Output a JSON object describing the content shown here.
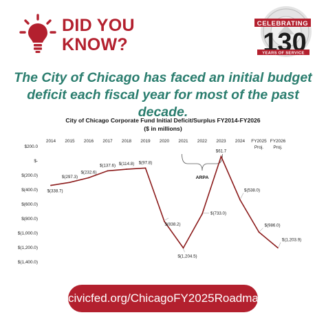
{
  "header": {
    "did_you": "DID YOU",
    "know": "KNOW?",
    "seal": {
      "celebrating": "CELEBRATING",
      "number": "130",
      "tagline": "YEARS OF SERVICE"
    }
  },
  "headline": "The City of Chicago has faced an initial budget deficit each fiscal year for most of the past decade.",
  "chart_data": {
    "type": "line",
    "title": "City of Chicago Corporate Fund Initial Deficit/Surplus FY2014-FY2026",
    "subtitle": "($ in millions)",
    "categories": [
      "2014",
      "2015",
      "2016",
      "2017",
      "2018",
      "2019",
      "2020",
      "2021",
      "2022",
      "2023",
      "2024",
      "FY2025 Proj.",
      "FY2026 Proj."
    ],
    "category_lines": [
      [
        "2014"
      ],
      [
        "2015"
      ],
      [
        "2016"
      ],
      [
        "2017"
      ],
      [
        "2018"
      ],
      [
        "2019"
      ],
      [
        "2020"
      ],
      [
        "2021"
      ],
      [
        "2022"
      ],
      [
        "2023"
      ],
      [
        "2024"
      ],
      [
        "FY2025",
        "Proj."
      ],
      [
        "FY2026",
        "Proj."
      ]
    ],
    "values": [
      -338.7,
      -297.3,
      -232.6,
      -137.6,
      -114.8,
      -97.8,
      -838.2,
      -1204.5,
      -733.0,
      61.7,
      -538.0,
      -986.0,
      -1203.9
    ],
    "data_labels": [
      "$(338.7)",
      "$(297.3)",
      "$(232.6)",
      "$(137.6)",
      "$(114.8)",
      "$(97.8)",
      "$(838.2)",
      "$(1,204.5)",
      "$(733.0)",
      "$61.7",
      "$(538.0)",
      "$(986.0)",
      "$(1,203.9)"
    ],
    "y_ticks": [
      200,
      0,
      -200,
      -400,
      -600,
      -800,
      -1000,
      -1200,
      -1400
    ],
    "y_tick_labels": [
      "$200.0",
      "$-",
      "$(200.0)",
      "$(400.0)",
      "$(600.0)",
      "$(800.0)",
      "$(1,000.0)",
      "$(1,200.0)",
      "$(1,400.0)"
    ],
    "ylim": [
      -1400,
      200
    ],
    "grid": false,
    "legend": "none",
    "line_color": "#8b1a1a",
    "annotation": {
      "text": "ARPA",
      "categories": [
        "2021",
        "2022",
        "2023"
      ]
    }
  },
  "footer": {
    "url": "civicfed.org/ChicagoFY2025Roadmap"
  },
  "colors": {
    "brand_red": "#b3202e",
    "headline_teal": "#2a7d6e",
    "line": "#8b1a1a"
  }
}
